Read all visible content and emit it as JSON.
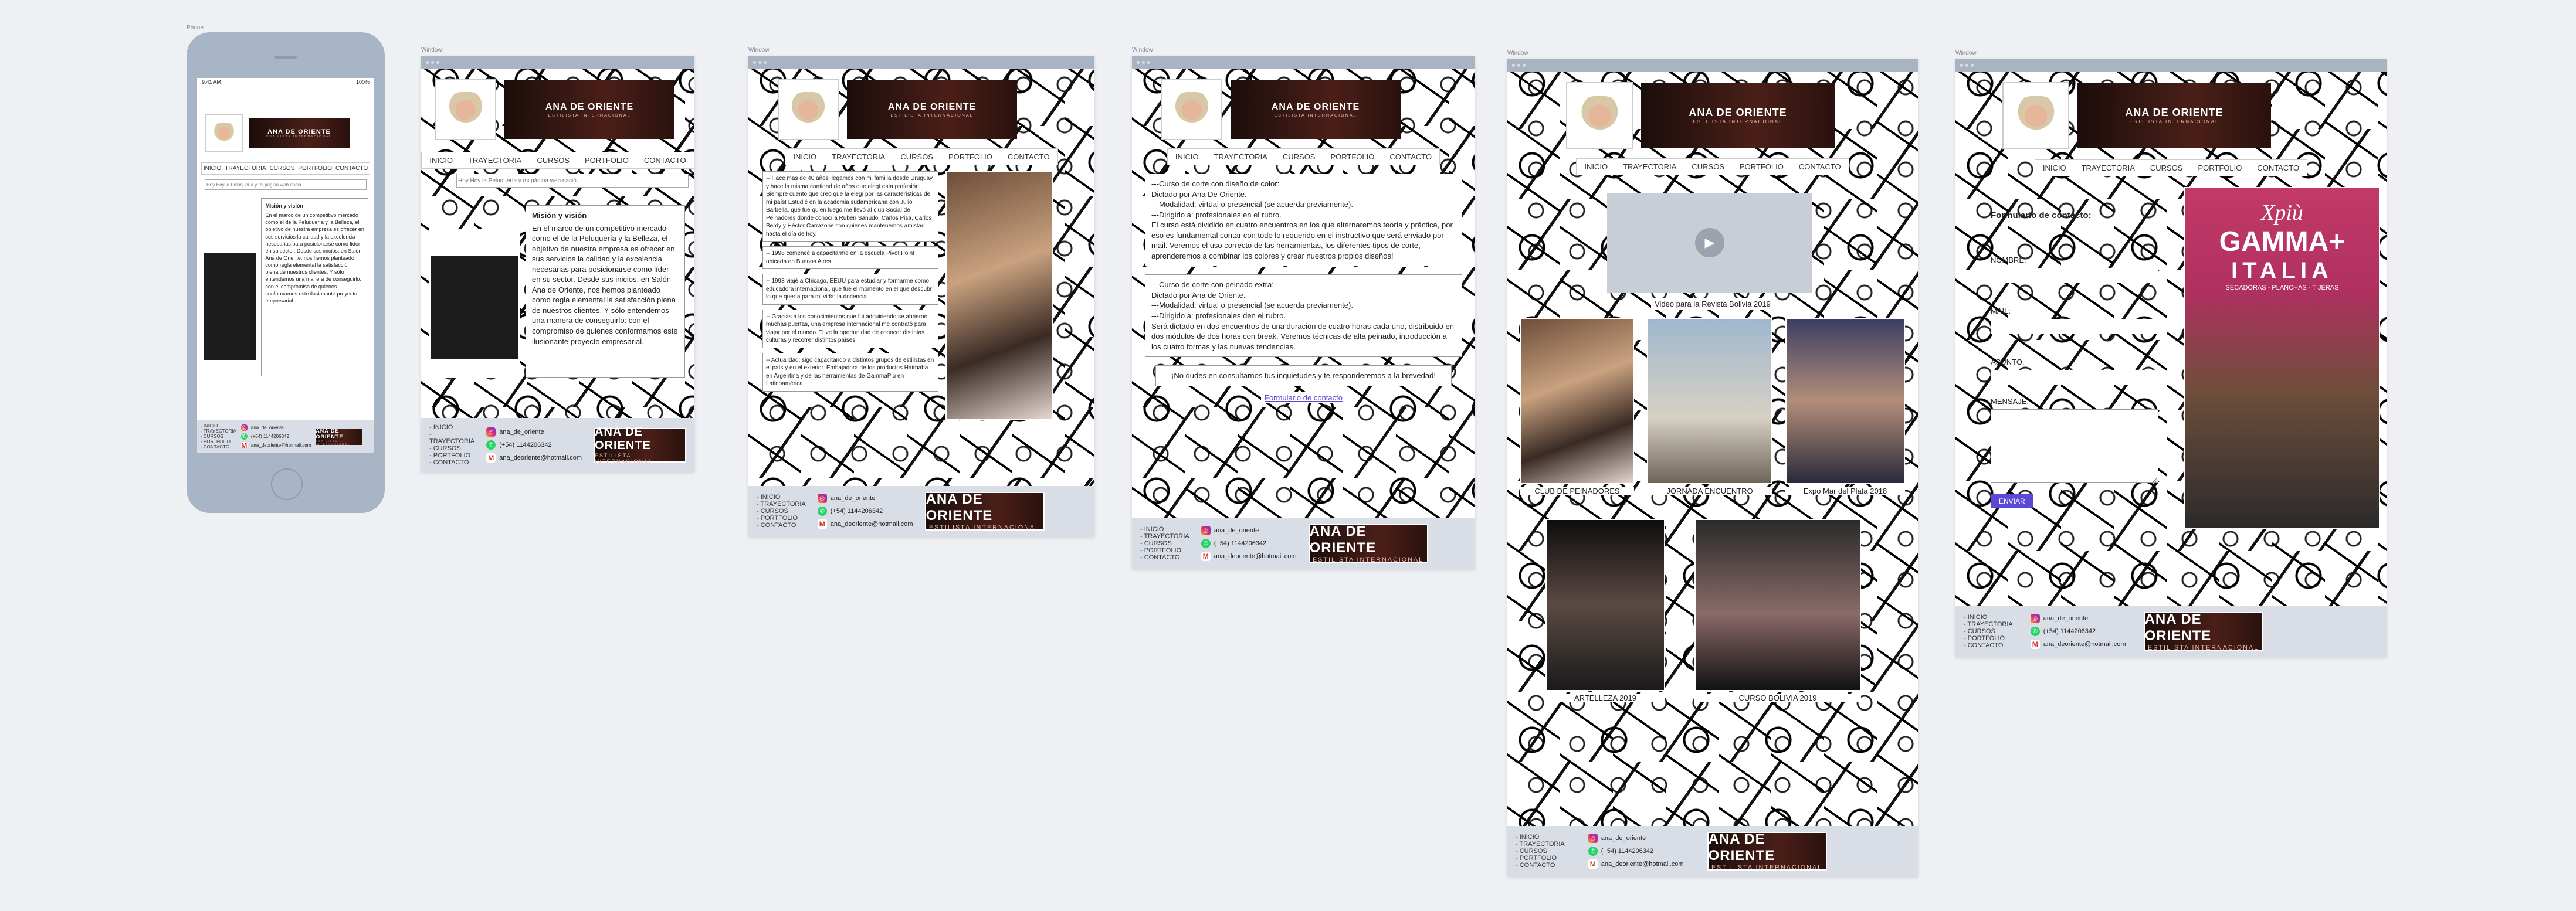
{
  "frames": {
    "phone": "Phone",
    "window": "Window"
  },
  "brand": {
    "name": "ANA DE ORIENTE",
    "tagline": "ESTILISTA INTERNACIONAL"
  },
  "phone_status": {
    "time": "9:41 AM",
    "battery": "100%"
  },
  "nav": [
    "INICIO",
    "TRAYECTORIA",
    "CURSOS",
    "PORTFOLIO",
    "CONTACTO"
  ],
  "search": {
    "placeholder": "Hoy Hoy la Peluquería y mi página web nació..."
  },
  "home": {
    "title": "Misión y visión",
    "body": "En el marco de un competitivo mercado como el de la Peluquería y la Belleza, el objetivo de nuestra empresa es ofrecer en sus servicios la calidad y la excelencia necesarias para posicionarse como líder en su sector. Desde sus inicios, en Salón Ana de Oriente, nos hemos planteado como regla elemental la satisfacción plena de nuestros clientes. Y sólo entendemos una manera de conseguirlo: con el compromiso de quienes conformamos este ilusionante proyecto empresarial."
  },
  "trayectoria": [
    "-- Hace mas de 40 años llegamos con mi familia desde Uruguay y hace la misma cantidad de años que elegí esta profesión. Siempre cuento que creo que la elegí por las características de mi país! Estudié en la academia sudamericana con Julio Barbella, que fue quien luego me llevó al club Social de Peinadores donde conocí a Rubén Sanudo, Carlos Pisa, Carlos Berdy y Héctor Carrazone con quienes mantenemos amistad hasta el día de hoy.",
    "-- 1996 comencé a capacitarme en la escuela Pivot Point ubicada en Buenos Aires.",
    "-- 1998 viajé a Chicago, EEUU para estudiar y formarme como educadora internacional, que fue el momento en el que descubrí lo que quería para mi vida: la docencia.",
    "-- Gracias a los conocimientos que fui adquiriendo se abrieron muchas puertas, una empresa internacional me contrató para viajar por el mundo. Tuve la oportunidad de conocer distintas culturas y recorrer distintos países.",
    "-- Actualidad: sigo capacitando a distintos grupos de estilistas en el país y en el exterior. Embajadora de los productos Hairbaba en Argentina y de las herramientas de GammaPiu en Latinoamérica."
  ],
  "cursos": {
    "curso1": [
      "---Curso de corte con diseño de color:",
      "Dictado por Ana De Oriente.",
      "---Modalidad: virtual o presencial (se acuerda previamente).",
      "---Dirigido a: profesionales en el rubro.",
      "El curso está dividido en cuatro encuentros en los que alternaremos teoría y práctica, por eso es fundamental contar con todo lo requerido en el instructivo que será enviado por mail. Veremos el uso correcto de las herramientas, los diferentes tipos de corte, aprenderemos a combinar los colores y crear nuestros propios diseños!"
    ],
    "curso2": [
      "---Curso de corte con peinado extra:",
      "Dictado por Ana de Oriente.",
      "---Modalidad: virtual o presencial (se acuerda previamente).",
      "---Dirigido a: profesionales den el rubro.",
      "Será dictado en dos encuentros de una duración de cuatro horas cada uno, distribuido en dos módulos de dos horas con break. Veremos técnicas de alta peinado, introducción a los cuatro formas y las nuevas tendencias."
    ],
    "closing": "¡No dudes en consultarnos tus inquietudes y te responderemos a la brevedad!",
    "link": "Formulario de contacto"
  },
  "portfolio": {
    "video_caption": "Video para la Revista Bolivia 2019",
    "gallery": [
      "CLUB DE PEINADORES",
      "JORNADA ENCUENTRO",
      "Expo Mar del Plata 2018",
      "ARTELLEZA 2019",
      "CURSO BOLIVIA 2019"
    ]
  },
  "contacto": {
    "title": "Formulario de contacto:",
    "fields": [
      "NOMBRE:",
      "MAIL:",
      "ASUNTO:",
      "MENSAJE:"
    ],
    "button": "ENVIAR",
    "poster_brand": "GAMMA+",
    "poster_sub": "ITALIA",
    "poster_script": "Xpiù",
    "poster_line": "SECADORAS - PLANCHAS - TIJERAS"
  },
  "footer": {
    "instagram": "ana_de_oriente",
    "whatsapp": "(+54) 1144206342",
    "email": "ana_deoriente@hotmail.com"
  },
  "colors": {
    "frame": "#a9b4c2",
    "footer": "#d8dde6",
    "button": "#5b48d6",
    "brand_bg": "#2a110d"
  }
}
